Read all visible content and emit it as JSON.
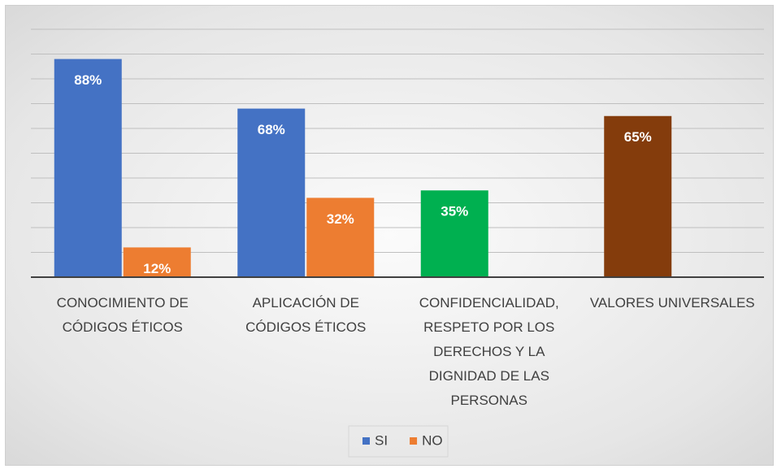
{
  "chart_data": {
    "type": "bar",
    "categories": [
      "CONOCIMIENTO DE CÓDIGOS ÉTICOS",
      "APLICACIÓN DE CÓDIGOS ÉTICOS",
      "CONFIDENCIALIDAD, RESPETO POR LOS DERECHOS Y LA DIGNIDAD DE LAS PERSONAS",
      "VALORES UNIVERSALES"
    ],
    "series": [
      {
        "name": "SI",
        "color": "#4472c4",
        "colors": [
          "#4472c4",
          "#4472c4",
          "#00b050",
          "#843c0c"
        ],
        "values": [
          88,
          68,
          35,
          65
        ],
        "value_labels": [
          "88%",
          "68%",
          "35%",
          "65%"
        ]
      },
      {
        "name": "NO",
        "color": "#ed7d31",
        "values": [
          12,
          32,
          null,
          null
        ],
        "value_labels": [
          "12%",
          "32%",
          null,
          null
        ]
      }
    ],
    "ylim": [
      0,
      100
    ],
    "yticks": [
      0,
      10,
      20,
      30,
      40,
      50,
      60,
      70,
      80,
      90,
      100
    ],
    "grid": true,
    "legend": "bottom"
  }
}
